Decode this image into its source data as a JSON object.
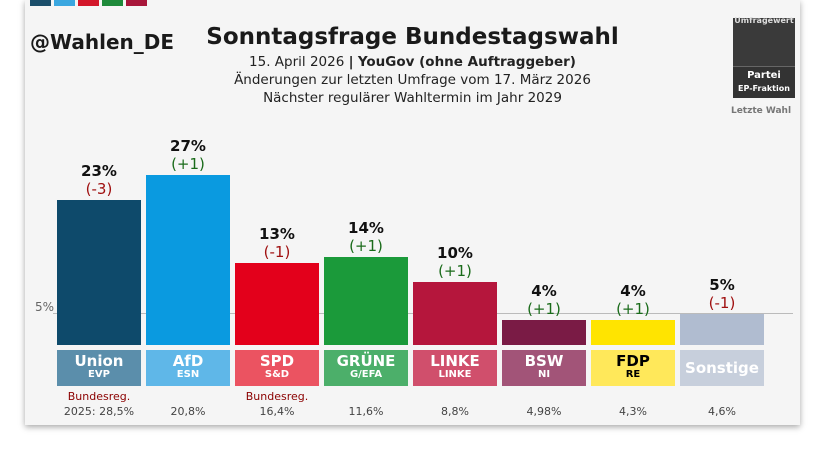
{
  "header": {
    "handle": "@Wahlen_DE",
    "title": "Sonntagsfrage Bundestagswahl",
    "line1_date": "15. April 2026",
    "line1_sep": "|",
    "line1_source": "YouGov (ohne Auftraggeber)",
    "line2": "Änderungen zur letzten Umfrage vom 17. März 2026",
    "line3": "Nächster regulärer Wahltermin im Jahr 2029",
    "flag_colors": [
      "#1b4f6b",
      "#3aa7e0",
      "#d3172a",
      "#1e8a3a",
      "#a8163a"
    ]
  },
  "legend": {
    "top": "Umfragewert",
    "party": "Partei",
    "fraction": "EP-Fraktion",
    "last": "Letzte Wahl"
  },
  "threshold_label": "5%",
  "chart_data": {
    "type": "bar",
    "title": "Sonntagsfrage Bundestagswahl",
    "threshold": 5,
    "ylim": [
      0,
      30
    ],
    "categories": [
      "Union",
      "AfD",
      "SPD",
      "GRÜNE",
      "LINKE",
      "BSW",
      "FDP",
      "Sonstige"
    ],
    "fractions": [
      "EVP",
      "ESN",
      "S&D",
      "G/EFA",
      "LINKE",
      "NI",
      "RE",
      ""
    ],
    "values": [
      23,
      27,
      13,
      14,
      10,
      4,
      4,
      5
    ],
    "value_labels": [
      "23%",
      "27%",
      "13%",
      "14%",
      "10%",
      "4%",
      "4%",
      "5%"
    ],
    "changes": [
      "(-3)",
      "(+1)",
      "(-1)",
      "(+1)",
      "(+1)",
      "(+1)",
      "(+1)",
      "(-1)"
    ],
    "change_colors": [
      "#a01010",
      "#1a6b1a",
      "#a01010",
      "#1a6b1a",
      "#1a6b1a",
      "#1a6b1a",
      "#1a6b1a",
      "#a01010"
    ],
    "colors": [
      "#0e4a6b",
      "#0a9ae0",
      "#e3001b",
      "#1b9a3a",
      "#b5163c",
      "#7a1b45",
      "#ffe400",
      "#b0bcd0"
    ],
    "plate_colors": [
      "#5b8eab",
      "#5fb7e8",
      "#eb5361",
      "#4caf6a",
      "#d04f6c",
      "#a25478",
      "#ffe85a",
      "#c7cfdc"
    ],
    "plate_text_colors": [
      "#ffffff",
      "#ffffff",
      "#ffffff",
      "#ffffff",
      "#ffffff",
      "#ffffff",
      "#000000",
      "#ffffff"
    ],
    "last_election": [
      "2025: 28,5%",
      "20,8%",
      "16,4%",
      "11,6%",
      "8,8%",
      "4,98%",
      "4,3%",
      "4,6%"
    ],
    "government": [
      "Bundesreg.",
      "",
      "Bundesreg.",
      "",
      "",
      "",
      "",
      ""
    ]
  }
}
